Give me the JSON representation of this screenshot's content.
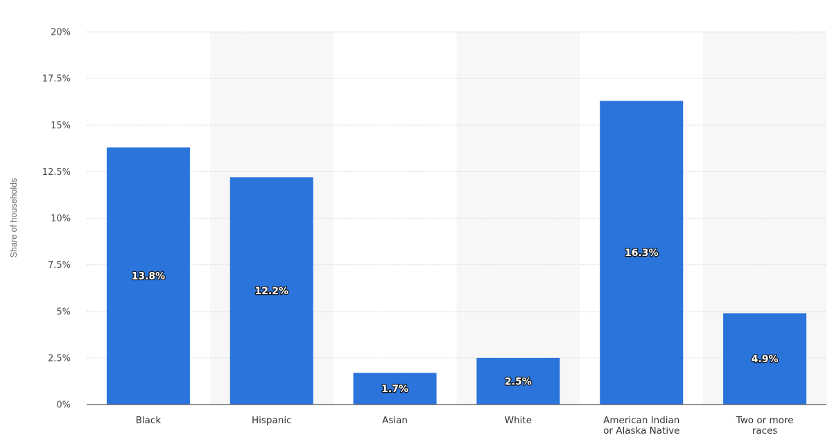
{
  "chart_data": {
    "type": "bar",
    "title": "",
    "xlabel": "",
    "ylabel": "Share of households",
    "categories": [
      "Black",
      "Hispanic",
      "Asian",
      "White",
      "American Indian or Alaska Native",
      "Two or more races"
    ],
    "category_label_lines": [
      [
        "Black"
      ],
      [
        "Hispanic"
      ],
      [
        "Asian"
      ],
      [
        "White"
      ],
      [
        "American Indian",
        "or Alaska Native"
      ],
      [
        "Two or more",
        "races"
      ]
    ],
    "values": [
      13.8,
      12.2,
      1.7,
      2.5,
      16.3,
      4.9
    ],
    "value_labels": [
      "13.8%",
      "12.2%",
      "1.7%",
      "2.5%",
      "16.3%",
      "4.9%"
    ],
    "ylim": [
      0,
      20
    ],
    "y_ticks": [
      0,
      2.5,
      5,
      7.5,
      10,
      12.5,
      15,
      17.5,
      20
    ],
    "y_tick_labels": [
      "0%",
      "2.5%",
      "5%",
      "7.5%",
      "10%",
      "12.5%",
      "15%",
      "17.5%",
      "20%"
    ],
    "grid": true,
    "alternating_column_shading": true,
    "colors": {
      "bar": "#2a74dc",
      "band": "#f7f7f7",
      "grid": "#d6d6d6",
      "axis": "#555555"
    }
  }
}
